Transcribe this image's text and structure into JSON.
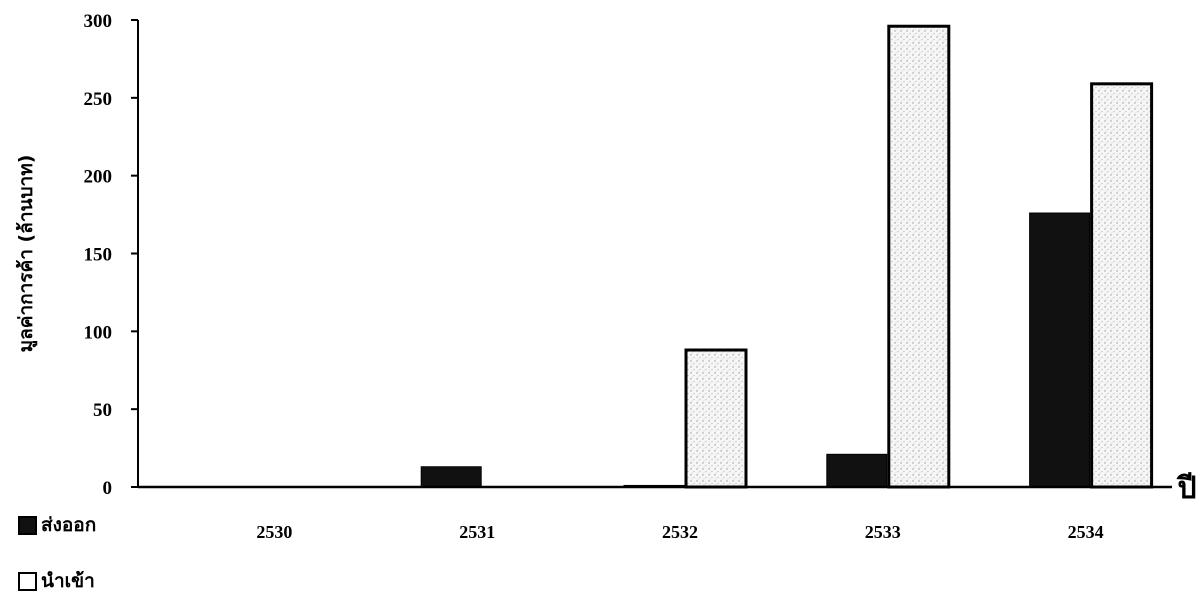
{
  "chart_data": {
    "type": "bar",
    "categories": [
      "2530",
      "2531",
      "2532",
      "2533",
      "2534"
    ],
    "series": [
      {
        "name": "ส่งออก",
        "values": [
          0,
          13,
          1,
          21,
          176
        ],
        "color": "#111111"
      },
      {
        "name": "นำเข้า",
        "values": [
          0,
          0,
          88,
          296,
          259
        ],
        "color": "#f4f4f4"
      }
    ],
    "ylabel": "มูลค่าการค้า (ล้านบาท)",
    "xlabel": "ปี",
    "ylim": [
      0,
      300
    ],
    "yticks": [
      0,
      50,
      100,
      150,
      200,
      250,
      300
    ],
    "grid": false,
    "legend_position": "bottom-left"
  }
}
